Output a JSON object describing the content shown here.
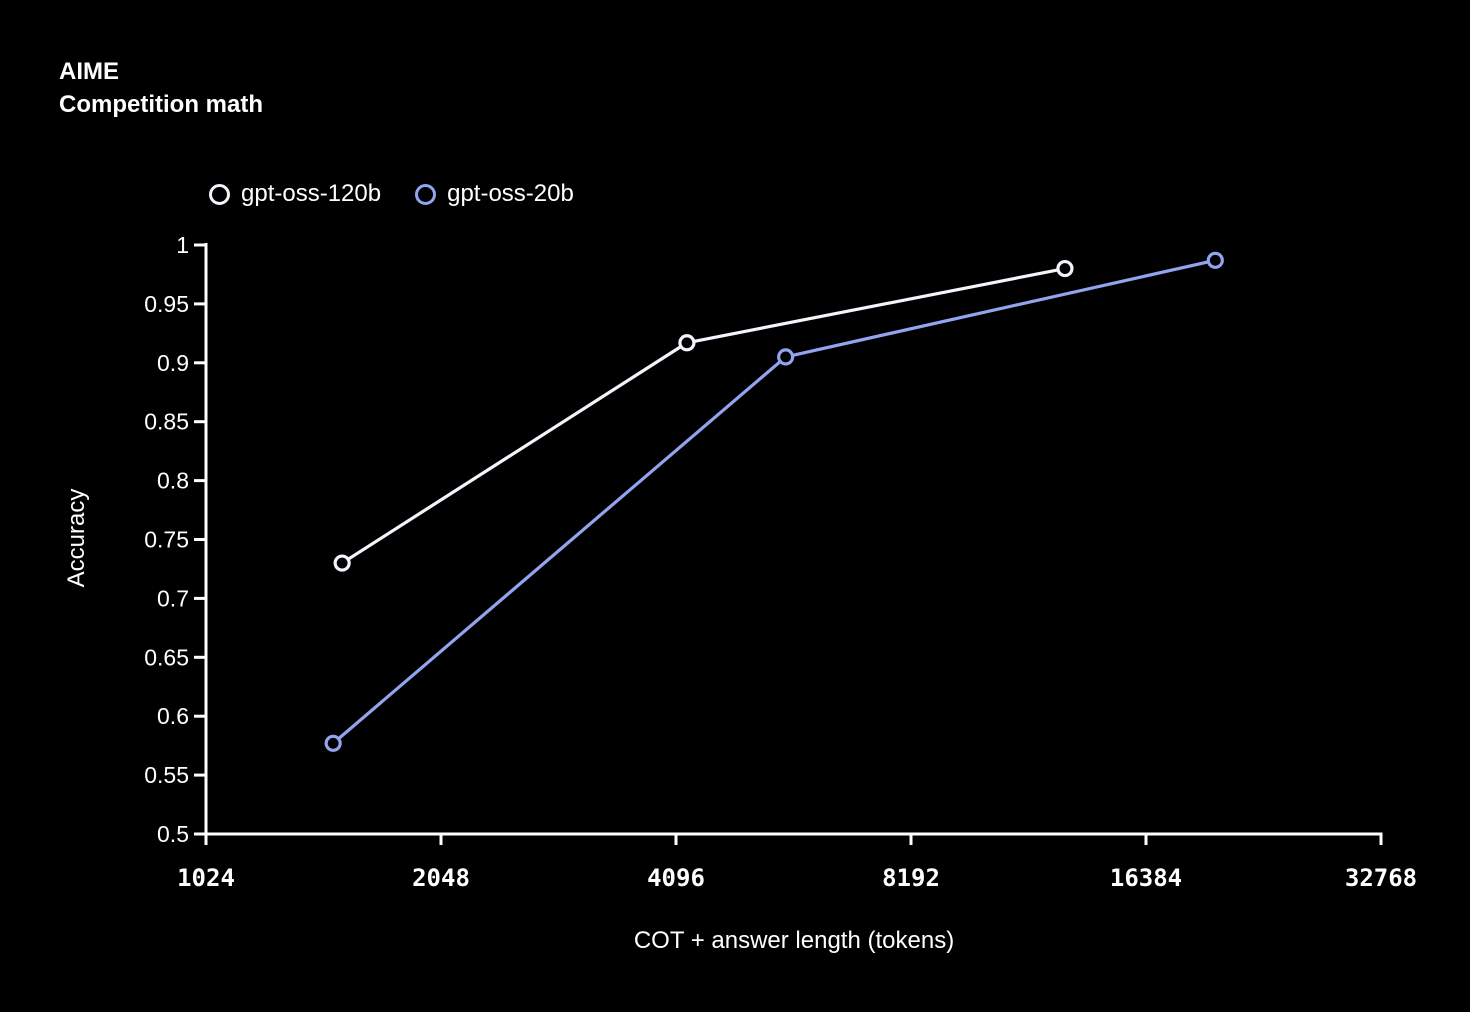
{
  "title": {
    "line1": "AIME",
    "line2": "Competition math"
  },
  "colors": {
    "background": "#000000",
    "axis": "#ffffff",
    "tick_label": "#ffffff",
    "series_120b": "#f2f5fc",
    "series_20b": "#92a4ee"
  },
  "chart_data": {
    "type": "line",
    "title": "AIME — Competition math",
    "xlabel": "COT + answer length (tokens)",
    "ylabel": "Accuracy",
    "x_scale": "log2",
    "xlim": [
      1024,
      32768
    ],
    "ylim": [
      0.5,
      1.0
    ],
    "x_ticks": [
      1024,
      2048,
      4096,
      8192,
      16384,
      32768
    ],
    "y_ticks": [
      0.5,
      0.55,
      0.6,
      0.65,
      0.7,
      0.75,
      0.8,
      0.85,
      0.9,
      0.95,
      1
    ],
    "grid": false,
    "legend_position": "top-left",
    "marker": "open-circle",
    "series": [
      {
        "name": "gpt-oss-120b",
        "color": "#f2f5fc",
        "points": [
          [
            1530,
            0.73
          ],
          [
            4230,
            0.917
          ],
          [
            12900,
            0.98
          ]
        ]
      },
      {
        "name": "gpt-oss-20b",
        "color": "#92a4ee",
        "points": [
          [
            1490,
            0.577
          ],
          [
            5660,
            0.905
          ],
          [
            20100,
            0.987
          ]
        ]
      }
    ]
  }
}
